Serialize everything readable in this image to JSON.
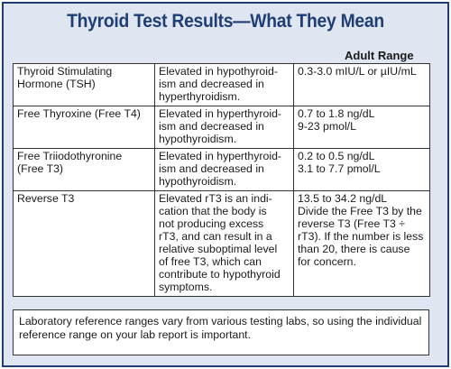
{
  "title": "Thyroid Test Results—What They Mean",
  "range_header": "Adult Range",
  "rows": [
    {
      "test": [
        "Thyroid Stimulating",
        "Hormone (TSH)"
      ],
      "meaning": [
        "Elevated in hypothyroid-",
        "ism and decreased in",
        "hyperthyroidism."
      ],
      "range": [
        "0.3-3.0 mIU/L or µIU/mL"
      ]
    },
    {
      "test": [
        "Free Thyroxine (Free T4)"
      ],
      "meaning": [
        "Elevated in hyperthyroid-",
        "ism and decreased in",
        "hypothyroidism."
      ],
      "range": [
        "0.7 to 1.8 ng/dL",
        "9-23 pmol/L"
      ]
    },
    {
      "test": [
        "Free Triiodothyronine",
        "(Free T3)"
      ],
      "meaning": [
        "Elevated in hyperthyroid-",
        "ism and decreased in",
        "hypothyroidism."
      ],
      "range": [
        "0.2 to 0.5 ng/dL",
        "3.1 to 7.7 pmol/L"
      ]
    },
    {
      "test": [
        "Reverse T3"
      ],
      "meaning": [
        "Elevated rT3 is an indi-",
        "cation that the body is",
        "not producing excess",
        "rT3, and can result in a",
        "relative suboptimal level",
        "of free T3, which can",
        "contribute to hypothyroid",
        "symptoms."
      ],
      "range": [
        "13.5 to 34.2 ng/dL",
        "Divide the Free T3 by the",
        "reverse T3 (Free T3 ÷",
        "rT3). If the number is less",
        "than 20, there is cause",
        "for concern."
      ]
    }
  ],
  "footnote": [
    "Laboratory reference ranges vary from various testing labs, so using the individual",
    "reference range on your lab report is important."
  ]
}
